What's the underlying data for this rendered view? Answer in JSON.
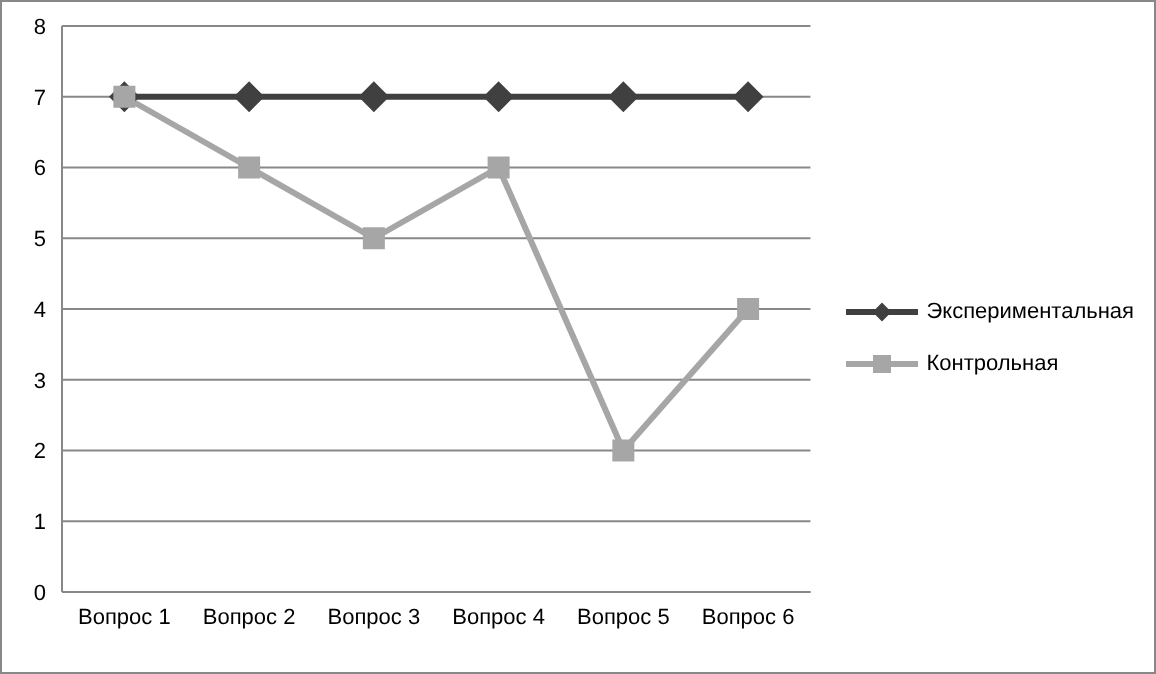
{
  "chart_data": {
    "type": "line",
    "categories": [
      "Вопрос 1",
      "Вопрос 2",
      "Вопрос 3",
      "Вопрос 4",
      "Вопрос 5",
      "Вопрос 6"
    ],
    "series": [
      {
        "name": "Экспериментальная",
        "color": "#404040",
        "marker": "diamond",
        "values": [
          7,
          7,
          7,
          7,
          7,
          7
        ]
      },
      {
        "name": "Контрольная",
        "color": "#a6a6a6",
        "marker": "square",
        "values": [
          7,
          6,
          5,
          6,
          2,
          4
        ]
      }
    ],
    "ylim": [
      0,
      8
    ],
    "yticks": [
      0,
      1,
      2,
      3,
      4,
      5,
      6,
      7,
      8
    ],
    "grid": "y",
    "legend": "right",
    "line_style": "solid"
  }
}
